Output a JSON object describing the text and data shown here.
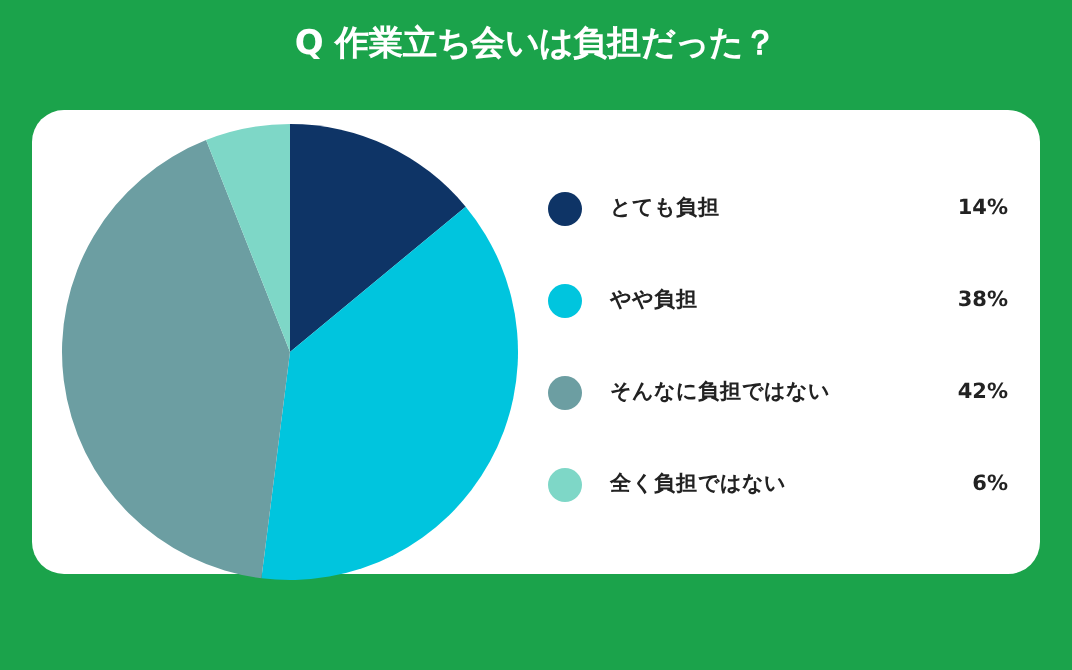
{
  "chart_data": {
    "type": "pie",
    "title": "Q 作業立ち会いは負担だった？",
    "categories": [
      "とても負担",
      "やや負担",
      "そんなに負担ではない",
      "全く負担ではない"
    ],
    "values": [
      14,
      38,
      42,
      6
    ],
    "colors": [
      "#0e3466",
      "#00c5de",
      "#6c9ea2",
      "#7ed7c7"
    ],
    "value_labels": [
      "14%",
      "38%",
      "42%",
      "6%"
    ],
    "legend": "right"
  }
}
